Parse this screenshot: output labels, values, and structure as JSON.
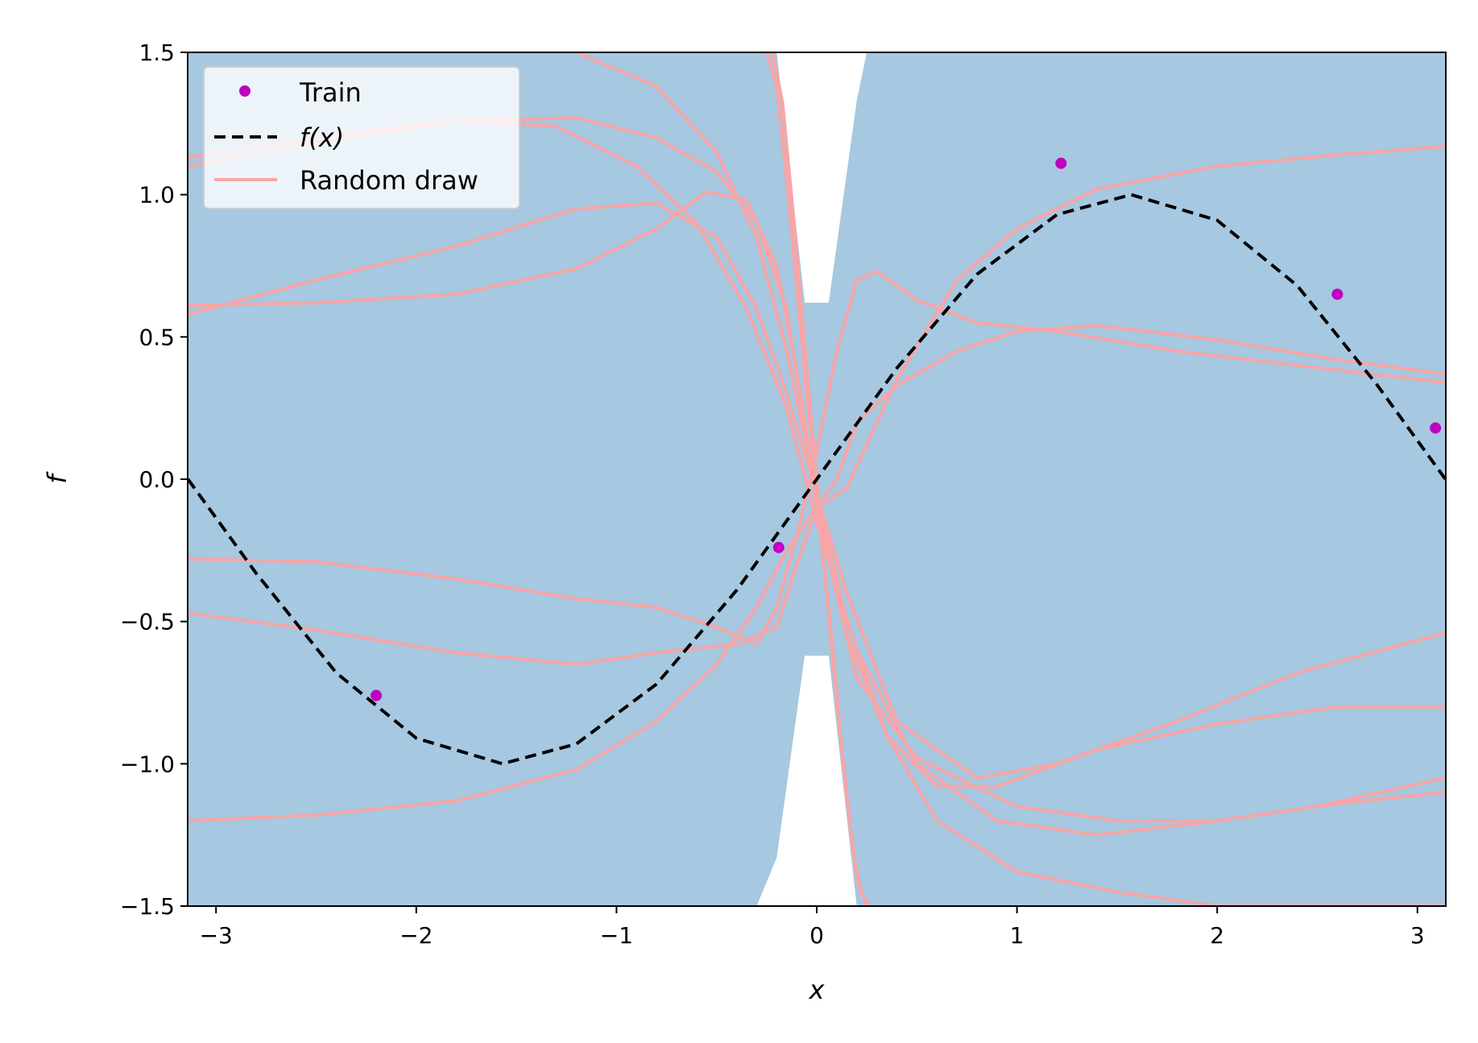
{
  "chart_data": {
    "type": "line",
    "title": "",
    "xlabel": "x",
    "ylabel": "f",
    "xlim": [
      -3.1416,
      3.1416
    ],
    "ylim": [
      -1.5,
      1.5
    ],
    "xticks": [
      -3,
      -2,
      -1,
      0,
      1,
      2,
      3
    ],
    "xtick_labels": [
      "−3",
      "−2",
      "−1",
      "0",
      "1",
      "2",
      "3"
    ],
    "yticks": [
      -1.5,
      -1.0,
      -0.5,
      0.0,
      0.5,
      1.0,
      1.5
    ],
    "ytick_labels": [
      "−1.5",
      "−1.0",
      "−0.5",
      "0.0",
      "0.5",
      "1.0",
      "1.5"
    ],
    "grid": false,
    "legend_position": "top-left",
    "colors": {
      "band": "#a6c8e0",
      "train": "#c000c0",
      "true_function": "#000000",
      "random_draw": "#f8a5a8"
    },
    "legend": [
      {
        "label": "Train",
        "style": "marker"
      },
      {
        "label": "f(x)",
        "style": "dashed"
      },
      {
        "label": "Random draw",
        "style": "line"
      }
    ],
    "train_points": {
      "x": [
        -2.2,
        -0.19,
        1.22,
        2.6,
        3.09
      ],
      "y": [
        -0.76,
        -0.24,
        1.11,
        0.65,
        0.18
      ]
    },
    "true_function": {
      "name": "f(x)",
      "x": [
        -3.14,
        -2.8,
        -2.4,
        -2.0,
        -1.57,
        -1.2,
        -0.8,
        -0.4,
        0.0,
        0.4,
        0.8,
        1.2,
        1.57,
        2.0,
        2.4,
        2.8,
        3.14
      ],
      "y": [
        0.0,
        -0.33,
        -0.68,
        -0.91,
        -1.0,
        -0.93,
        -0.72,
        -0.39,
        0.0,
        0.39,
        0.72,
        0.93,
        1.0,
        0.91,
        0.68,
        0.33,
        0.0
      ]
    },
    "confidence_band": {
      "x": [
        -3.14,
        -0.3,
        -0.2,
        -0.06,
        0.06,
        0.2,
        0.25,
        3.14
      ],
      "upper": [
        1.5,
        1.5,
        1.5,
        0.62,
        0.62,
        1.33,
        1.5,
        1.5
      ],
      "lower": [
        -1.5,
        -1.5,
        -1.33,
        -0.62,
        -0.62,
        -1.5,
        -1.5,
        -1.5
      ]
    },
    "random_draws": [
      {
        "x": [
          -3.14,
          -2.5,
          -1.8,
          -1.2,
          -0.8,
          -0.5,
          -0.3,
          -0.15,
          0.0,
          0.2,
          0.5,
          1.0,
          1.5,
          2.0,
          2.5,
          3.14
        ],
        "y": [
          1.13,
          1.2,
          1.26,
          1.27,
          1.2,
          1.08,
          0.9,
          0.6,
          -0.1,
          -0.7,
          -0.98,
          -1.15,
          -1.2,
          -1.2,
          -1.15,
          -1.05
        ]
      },
      {
        "x": [
          -3.14,
          -2.5,
          -1.8,
          -1.3,
          -0.9,
          -0.6,
          -0.35,
          -0.15,
          0.0,
          0.2,
          0.5,
          0.9,
          1.4,
          2.0,
          2.6,
          3.14
        ],
        "y": [
          1.1,
          1.18,
          1.26,
          1.24,
          1.1,
          0.9,
          0.6,
          0.25,
          -0.15,
          -0.6,
          -1.0,
          -1.2,
          -1.25,
          -1.2,
          -1.14,
          -1.1
        ]
      },
      {
        "x": [
          -3.14,
          -2.5,
          -1.8,
          -1.2,
          -0.8,
          -0.5,
          -0.3,
          -0.15,
          0.0,
          0.15,
          0.4,
          0.8,
          1.2,
          1.8,
          2.4,
          3.14
        ],
        "y": [
          0.58,
          0.7,
          0.82,
          0.95,
          0.97,
          0.85,
          0.6,
          0.3,
          -0.05,
          -0.4,
          -0.85,
          -1.05,
          -1.0,
          -0.85,
          -0.68,
          -0.54
        ]
      },
      {
        "x": [
          -3.14,
          -2.5,
          -1.8,
          -1.2,
          -0.8,
          -0.55,
          -0.35,
          -0.2,
          -0.08,
          0.0,
          0.15,
          0.35,
          0.6,
          0.9,
          1.4,
          2.0,
          2.6,
          3.14
        ],
        "y": [
          0.61,
          0.62,
          0.65,
          0.74,
          0.88,
          1.01,
          0.98,
          0.75,
          0.3,
          -0.1,
          -0.55,
          -0.9,
          -1.08,
          -1.08,
          -0.95,
          -0.86,
          -0.8,
          -0.8
        ]
      },
      {
        "x": [
          -3.14,
          -2.5,
          -1.8,
          -1.2,
          -0.8,
          -0.5,
          -0.3,
          -0.2,
          -0.1,
          0.0,
          0.1,
          0.2,
          0.3,
          0.5,
          0.8,
          1.2,
          1.8,
          2.4,
          3.14
        ],
        "y": [
          -0.28,
          -0.29,
          -0.35,
          -0.42,
          -0.45,
          -0.52,
          -0.58,
          -0.45,
          -0.2,
          0.1,
          0.45,
          0.7,
          0.73,
          0.63,
          0.55,
          0.52,
          0.45,
          0.4,
          0.34
        ]
      },
      {
        "x": [
          -3.14,
          -2.5,
          -1.8,
          -1.2,
          -0.8,
          -0.4,
          -0.2,
          -0.1,
          0.0,
          0.1,
          0.2,
          0.4,
          0.7,
          1.0,
          1.4,
          2.0,
          2.6,
          3.14
        ],
        "y": [
          -0.47,
          -0.53,
          -0.61,
          -0.65,
          -0.61,
          -0.58,
          -0.52,
          -0.3,
          -0.1,
          0.0,
          0.2,
          0.33,
          0.45,
          0.52,
          0.54,
          0.49,
          0.42,
          0.37
        ]
      },
      {
        "x": [
          -3.14,
          -2.5,
          -1.8,
          -1.2,
          -0.8,
          -0.5,
          -0.3,
          -0.15,
          0.0,
          0.15,
          0.4,
          0.7,
          1.0,
          1.4,
          2.0,
          2.6,
          3.14
        ],
        "y": [
          -1.2,
          -1.18,
          -1.13,
          -1.02,
          -0.85,
          -0.65,
          -0.45,
          -0.25,
          -0.1,
          -0.03,
          0.35,
          0.7,
          0.88,
          1.02,
          1.1,
          1.14,
          1.17
        ]
      },
      {
        "x": [
          -0.25,
          -0.2,
          -0.15,
          -0.1,
          -0.05,
          0.0,
          0.05,
          0.1,
          0.15,
          0.2,
          0.25
        ],
        "y": [
          1.5,
          1.38,
          1.05,
          0.68,
          0.3,
          -0.05,
          -0.4,
          -0.78,
          -1.12,
          -1.4,
          -1.5
        ]
      },
      {
        "x": [
          -0.22,
          -0.17,
          -0.12,
          -0.07,
          -0.02,
          0.03,
          0.08,
          0.13,
          0.18,
          0.22,
          0.26
        ],
        "y": [
          1.5,
          1.32,
          0.95,
          0.55,
          0.15,
          -0.25,
          -0.6,
          -0.98,
          -1.3,
          -1.45,
          -1.5
        ]
      },
      {
        "x": [
          -3.14,
          -2.5,
          -1.8,
          -1.2,
          -0.8,
          -0.5,
          -0.3,
          -0.15,
          0.0,
          0.15,
          0.35,
          0.6,
          1.0,
          1.5,
          2.0,
          2.6,
          3.14
        ],
        "y": [
          1.5,
          1.5,
          1.5,
          1.5,
          1.38,
          1.15,
          0.85,
          0.45,
          -0.05,
          -0.5,
          -0.9,
          -1.2,
          -1.38,
          -1.45,
          -1.5,
          -1.5,
          -1.5
        ]
      }
    ]
  }
}
